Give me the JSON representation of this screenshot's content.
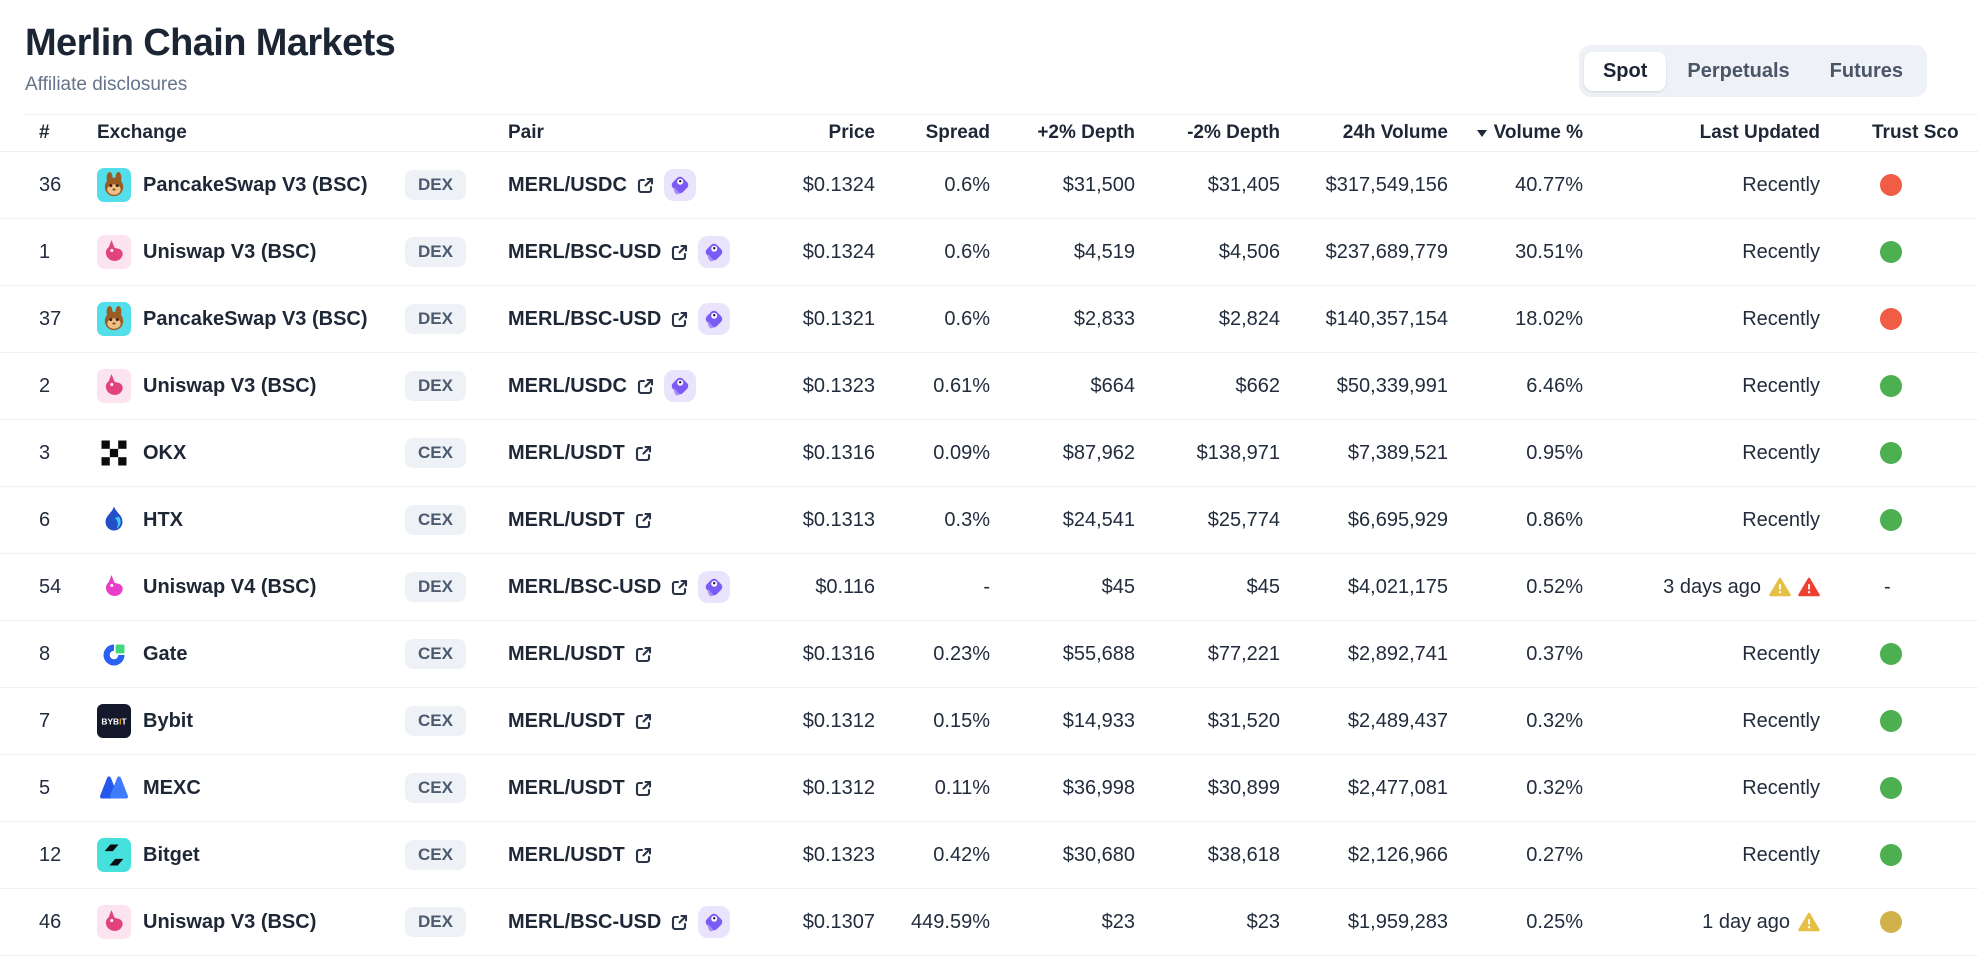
{
  "page": {
    "title": "Merlin Chain Markets",
    "subtitle": "Affiliate disclosures"
  },
  "tabs": [
    {
      "label": "Spot",
      "active": true
    },
    {
      "label": "Perpetuals",
      "active": false
    },
    {
      "label": "Futures",
      "active": false
    }
  ],
  "colors": {
    "trust": {
      "green": "#4caf50",
      "red": "#f05c44",
      "yellow": "#d0b14a"
    },
    "warning": {
      "yellow": "#e5c044",
      "red": "#ee4130"
    },
    "accent_purple": "#7a5bf5"
  },
  "table": {
    "headers": {
      "rank": "#",
      "exchange": "Exchange",
      "pair": "Pair",
      "price": "Price",
      "spread": "Spread",
      "depth_plus": "+2% Depth",
      "depth_minus": "-2% Depth",
      "volume": "24h Volume",
      "volume_pct": "Volume %",
      "last_updated": "Last Updated",
      "trust_score": "Trust Sco"
    },
    "rows": [
      {
        "rank": "36",
        "exchange": "PancakeSwap V3 (BSC)",
        "logo": "pancakeswap",
        "type": "DEX",
        "pair": "MERL/USDC",
        "gecko_badge": true,
        "price": "$0.1324",
        "spread": "0.6%",
        "depth_plus": "$31,500",
        "depth_minus": "$31,405",
        "volume": "$317,549,156",
        "volume_pct": "40.77%",
        "updated": "Recently",
        "warnings": [],
        "trust": "red"
      },
      {
        "rank": "1",
        "exchange": "Uniswap V3 (BSC)",
        "logo": "uniswap-v3",
        "type": "DEX",
        "pair": "MERL/BSC-USD",
        "gecko_badge": true,
        "price": "$0.1324",
        "spread": "0.6%",
        "depth_plus": "$4,519",
        "depth_minus": "$4,506",
        "volume": "$237,689,779",
        "volume_pct": "30.51%",
        "updated": "Recently",
        "warnings": [],
        "trust": "green"
      },
      {
        "rank": "37",
        "exchange": "PancakeSwap V3 (BSC)",
        "logo": "pancakeswap",
        "type": "DEX",
        "pair": "MERL/BSC-USD",
        "gecko_badge": true,
        "price": "$0.1321",
        "spread": "0.6%",
        "depth_plus": "$2,833",
        "depth_minus": "$2,824",
        "volume": "$140,357,154",
        "volume_pct": "18.02%",
        "updated": "Recently",
        "warnings": [],
        "trust": "red"
      },
      {
        "rank": "2",
        "exchange": "Uniswap V3 (BSC)",
        "logo": "uniswap-v3",
        "type": "DEX",
        "pair": "MERL/USDC",
        "gecko_badge": true,
        "price": "$0.1323",
        "spread": "0.61%",
        "depth_plus": "$664",
        "depth_minus": "$662",
        "volume": "$50,339,991",
        "volume_pct": "6.46%",
        "updated": "Recently",
        "warnings": [],
        "trust": "green"
      },
      {
        "rank": "3",
        "exchange": "OKX",
        "logo": "okx",
        "type": "CEX",
        "pair": "MERL/USDT",
        "gecko_badge": false,
        "price": "$0.1316",
        "spread": "0.09%",
        "depth_plus": "$87,962",
        "depth_minus": "$138,971",
        "volume": "$7,389,521",
        "volume_pct": "0.95%",
        "updated": "Recently",
        "warnings": [],
        "trust": "green"
      },
      {
        "rank": "6",
        "exchange": "HTX",
        "logo": "htx",
        "type": "CEX",
        "pair": "MERL/USDT",
        "gecko_badge": false,
        "price": "$0.1313",
        "spread": "0.3%",
        "depth_plus": "$24,541",
        "depth_minus": "$25,774",
        "volume": "$6,695,929",
        "volume_pct": "0.86%",
        "updated": "Recently",
        "warnings": [],
        "trust": "green"
      },
      {
        "rank": "54",
        "exchange": "Uniswap V4 (BSC)",
        "logo": "uniswap-v4",
        "type": "DEX",
        "pair": "MERL/BSC-USD",
        "gecko_badge": true,
        "price": "$0.116",
        "spread": "-",
        "depth_plus": "$45",
        "depth_minus": "$45",
        "volume": "$4,021,175",
        "volume_pct": "0.52%",
        "updated": "3 days ago",
        "warnings": [
          "yellow",
          "red"
        ],
        "trust": "none"
      },
      {
        "rank": "8",
        "exchange": "Gate",
        "logo": "gate",
        "type": "CEX",
        "pair": "MERL/USDT",
        "gecko_badge": false,
        "price": "$0.1316",
        "spread": "0.23%",
        "depth_plus": "$55,688",
        "depth_minus": "$77,221",
        "volume": "$2,892,741",
        "volume_pct": "0.37%",
        "updated": "Recently",
        "warnings": [],
        "trust": "green"
      },
      {
        "rank": "7",
        "exchange": "Bybit",
        "logo": "bybit",
        "type": "CEX",
        "pair": "MERL/USDT",
        "gecko_badge": false,
        "price": "$0.1312",
        "spread": "0.15%",
        "depth_plus": "$14,933",
        "depth_minus": "$31,520",
        "volume": "$2,489,437",
        "volume_pct": "0.32%",
        "updated": "Recently",
        "warnings": [],
        "trust": "green"
      },
      {
        "rank": "5",
        "exchange": "MEXC",
        "logo": "mexc",
        "type": "CEX",
        "pair": "MERL/USDT",
        "gecko_badge": false,
        "price": "$0.1312",
        "spread": "0.11%",
        "depth_plus": "$36,998",
        "depth_minus": "$30,899",
        "volume": "$2,477,081",
        "volume_pct": "0.32%",
        "updated": "Recently",
        "warnings": [],
        "trust": "green"
      },
      {
        "rank": "12",
        "exchange": "Bitget",
        "logo": "bitget",
        "type": "CEX",
        "pair": "MERL/USDT",
        "gecko_badge": false,
        "price": "$0.1323",
        "spread": "0.42%",
        "depth_plus": "$30,680",
        "depth_minus": "$38,618",
        "volume": "$2,126,966",
        "volume_pct": "0.27%",
        "updated": "Recently",
        "warnings": [],
        "trust": "green"
      },
      {
        "rank": "46",
        "exchange": "Uniswap V3 (BSC)",
        "logo": "uniswap-v3",
        "type": "DEX",
        "pair": "MERL/BSC-USD",
        "gecko_badge": true,
        "price": "$0.1307",
        "spread": "449.59%",
        "depth_plus": "$23",
        "depth_minus": "$23",
        "volume": "$1,959,283",
        "volume_pct": "0.25%",
        "updated": "1 day ago",
        "warnings": [
          "yellow"
        ],
        "trust": "yellow"
      }
    ]
  }
}
